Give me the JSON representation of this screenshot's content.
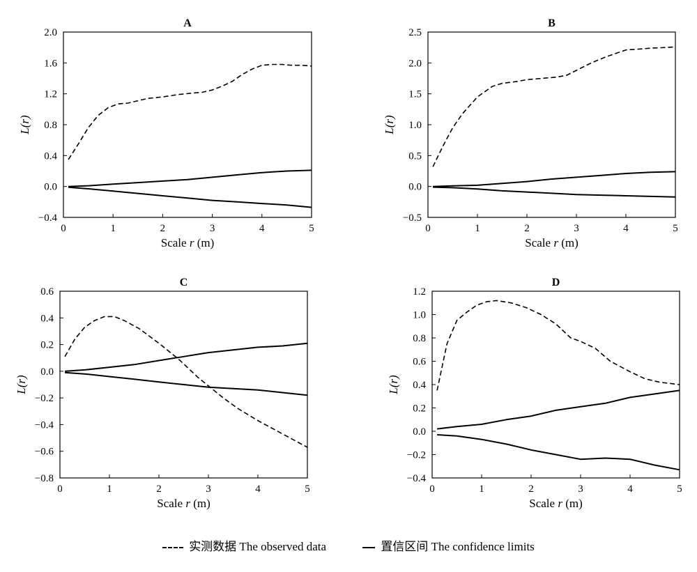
{
  "chart_data": [
    {
      "type": "line",
      "title": "A",
      "xlabel": "Scale r (m)",
      "ylabel": "L(r)",
      "xlim": [
        0,
        5
      ],
      "ylim": [
        -0.4,
        2.0
      ],
      "xticks": [
        "0",
        "1",
        "2",
        "3",
        "4",
        "5"
      ],
      "yticks": [
        "−0.4",
        "0.0",
        "0.4",
        "0.8",
        "1.2",
        "1.6",
        "2.0"
      ],
      "grid": false,
      "series": [
        {
          "role": "observed",
          "style": "dashed",
          "x": [
            0.1,
            0.3,
            0.5,
            0.7,
            0.9,
            1.1,
            1.3,
            1.5,
            1.7,
            2.0,
            2.3,
            2.6,
            2.8,
            3.0,
            3.2,
            3.4,
            3.6,
            3.8,
            4.0,
            4.2,
            4.4,
            4.6,
            4.8,
            5.0
          ],
          "y": [
            0.35,
            0.55,
            0.76,
            0.92,
            1.02,
            1.07,
            1.08,
            1.11,
            1.14,
            1.16,
            1.19,
            1.21,
            1.22,
            1.25,
            1.3,
            1.36,
            1.45,
            1.52,
            1.57,
            1.58,
            1.58,
            1.57,
            1.57,
            1.56
          ]
        },
        {
          "role": "upper",
          "style": "solid",
          "x": [
            0.1,
            0.5,
            1.0,
            1.5,
            2.0,
            2.5,
            3.0,
            3.5,
            4.0,
            4.5,
            5.0
          ],
          "y": [
            0.0,
            0.01,
            0.03,
            0.05,
            0.07,
            0.09,
            0.12,
            0.15,
            0.18,
            0.2,
            0.21
          ]
        },
        {
          "role": "lower",
          "style": "solid",
          "x": [
            0.1,
            0.5,
            1.0,
            1.5,
            2.0,
            2.5,
            3.0,
            3.5,
            4.0,
            4.5,
            5.0
          ],
          "y": [
            -0.01,
            -0.03,
            -0.06,
            -0.09,
            -0.12,
            -0.15,
            -0.18,
            -0.2,
            -0.22,
            -0.24,
            -0.27
          ]
        }
      ]
    },
    {
      "type": "line",
      "title": "B",
      "xlabel": "Scale r (m)",
      "ylabel": "L(r)",
      "xlim": [
        0,
        5
      ],
      "ylim": [
        -0.5,
        2.5
      ],
      "xticks": [
        "0",
        "1",
        "2",
        "3",
        "4",
        "5"
      ],
      "yticks": [
        "−0.5",
        "0.0",
        "0.5",
        "1.0",
        "1.5",
        "2.0",
        "2.5"
      ],
      "grid": false,
      "series": [
        {
          "role": "observed",
          "style": "dashed",
          "x": [
            0.1,
            0.3,
            0.5,
            0.7,
            1.0,
            1.3,
            1.5,
            1.8,
            2.0,
            2.3,
            2.6,
            2.8,
            3.0,
            3.3,
            3.6,
            4.0,
            4.2,
            4.5,
            4.8,
            5.0
          ],
          "y": [
            0.32,
            0.65,
            0.95,
            1.18,
            1.45,
            1.62,
            1.67,
            1.7,
            1.73,
            1.75,
            1.77,
            1.8,
            1.88,
            2.0,
            2.1,
            2.21,
            2.22,
            2.24,
            2.25,
            2.26
          ]
        },
        {
          "role": "upper",
          "style": "solid",
          "x": [
            0.1,
            0.5,
            1.0,
            1.5,
            2.0,
            2.5,
            3.0,
            3.5,
            4.0,
            4.5,
            5.0
          ],
          "y": [
            0.0,
            0.01,
            0.02,
            0.05,
            0.08,
            0.12,
            0.15,
            0.18,
            0.21,
            0.23,
            0.24
          ]
        },
        {
          "role": "lower",
          "style": "solid",
          "x": [
            0.1,
            0.5,
            1.0,
            1.5,
            2.0,
            2.5,
            3.0,
            3.5,
            4.0,
            4.5,
            5.0
          ],
          "y": [
            -0.01,
            -0.02,
            -0.04,
            -0.07,
            -0.09,
            -0.11,
            -0.13,
            -0.14,
            -0.15,
            -0.16,
            -0.17
          ]
        }
      ]
    },
    {
      "type": "line",
      "title": "C",
      "xlabel": "Scale r (m)",
      "ylabel": "L(r)",
      "xlim": [
        0,
        5
      ],
      "ylim": [
        -0.8,
        0.6
      ],
      "xticks": [
        "0",
        "1",
        "2",
        "3",
        "4",
        "5"
      ],
      "yticks": [
        "−0.8",
        "−0.6",
        "−0.4",
        "−0.2",
        "0.0",
        "0.2",
        "0.4",
        "0.6"
      ],
      "grid": false,
      "series": [
        {
          "role": "observed",
          "style": "dashed",
          "x": [
            0.1,
            0.3,
            0.5,
            0.7,
            0.9,
            1.1,
            1.3,
            1.6,
            2.0,
            2.4,
            2.8,
            3.0,
            3.3,
            3.6,
            4.0,
            4.3,
            4.6,
            5.0
          ],
          "y": [
            0.11,
            0.24,
            0.33,
            0.38,
            0.41,
            0.41,
            0.38,
            0.32,
            0.21,
            0.09,
            -0.05,
            -0.11,
            -0.2,
            -0.28,
            -0.37,
            -0.43,
            -0.49,
            -0.57
          ]
        },
        {
          "role": "upper",
          "style": "solid",
          "x": [
            0.1,
            0.5,
            1.0,
            1.5,
            2.0,
            2.5,
            3.0,
            3.5,
            4.0,
            4.5,
            5.0
          ],
          "y": [
            0.0,
            0.01,
            0.03,
            0.05,
            0.08,
            0.11,
            0.14,
            0.16,
            0.18,
            0.19,
            0.21
          ]
        },
        {
          "role": "lower",
          "style": "solid",
          "x": [
            0.1,
            0.5,
            1.0,
            1.5,
            2.0,
            2.5,
            3.0,
            3.5,
            4.0,
            4.5,
            5.0
          ],
          "y": [
            -0.01,
            -0.02,
            -0.04,
            -0.06,
            -0.08,
            -0.1,
            -0.12,
            -0.13,
            -0.14,
            -0.16,
            -0.18
          ]
        }
      ]
    },
    {
      "type": "line",
      "title": "D",
      "xlabel": "Scale r (m)",
      "ylabel": "L(r)",
      "xlim": [
        0,
        5
      ],
      "ylim": [
        -0.4,
        1.2
      ],
      "xticks": [
        "0",
        "1",
        "2",
        "3",
        "4",
        "5"
      ],
      "yticks": [
        "−0.4",
        "−0.2",
        "0.0",
        "0.2",
        "0.4",
        "0.6",
        "0.8",
        "1.0",
        "1.2"
      ],
      "grid": false,
      "series": [
        {
          "role": "observed",
          "style": "dashed",
          "x": [
            0.1,
            0.3,
            0.5,
            0.7,
            0.9,
            1.1,
            1.3,
            1.6,
            1.9,
            2.2,
            2.5,
            2.8,
            3.0,
            3.3,
            3.6,
            4.0,
            4.3,
            4.6,
            5.0
          ],
          "y": [
            0.35,
            0.75,
            0.95,
            1.02,
            1.08,
            1.11,
            1.12,
            1.1,
            1.06,
            1.0,
            0.92,
            0.8,
            0.77,
            0.71,
            0.6,
            0.51,
            0.45,
            0.42,
            0.4
          ]
        },
        {
          "role": "upper",
          "style": "solid",
          "x": [
            0.1,
            0.5,
            1.0,
            1.5,
            2.0,
            2.5,
            3.0,
            3.5,
            4.0,
            4.5,
            5.0
          ],
          "y": [
            0.02,
            0.04,
            0.06,
            0.1,
            0.13,
            0.18,
            0.21,
            0.24,
            0.29,
            0.32,
            0.35
          ]
        },
        {
          "role": "lower",
          "style": "solid",
          "x": [
            0.1,
            0.5,
            1.0,
            1.5,
            2.0,
            2.5,
            3.0,
            3.5,
            4.0,
            4.5,
            5.0
          ],
          "y": [
            -0.03,
            -0.04,
            -0.07,
            -0.11,
            -0.16,
            -0.2,
            -0.24,
            -0.23,
            -0.24,
            -0.29,
            -0.33
          ]
        }
      ]
    }
  ],
  "legend": {
    "observed_label": "实测数据  The observed data",
    "confidence_label": "置信区间  The confidence limits"
  }
}
